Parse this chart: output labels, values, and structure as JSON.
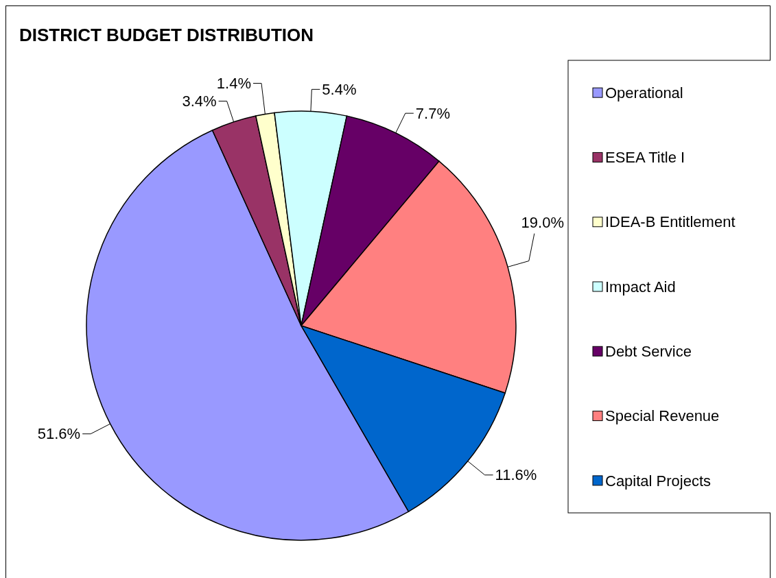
{
  "chart_data": {
    "type": "pie",
    "title": "DISTRICT BUDGET DISTRIBUTION",
    "categories": [
      "Operational",
      "ESEA Title I",
      "IDEA-B Entitlement",
      "Impact Aid",
      "Debt Service",
      "Special Revenue",
      "Capital Projects"
    ],
    "values": [
      51.6,
      3.4,
      1.4,
      5.4,
      7.7,
      19.0,
      11.6
    ],
    "value_labels": [
      "51.6%",
      "3.4%",
      "1.4%",
      "5.4%",
      "7.7%",
      "19.0%",
      "11.6%"
    ],
    "colors": [
      "#9999ff",
      "#993366",
      "#ffffcc",
      "#ccffff",
      "#660066",
      "#ff8080",
      "#0066cc"
    ],
    "legend": "right"
  }
}
